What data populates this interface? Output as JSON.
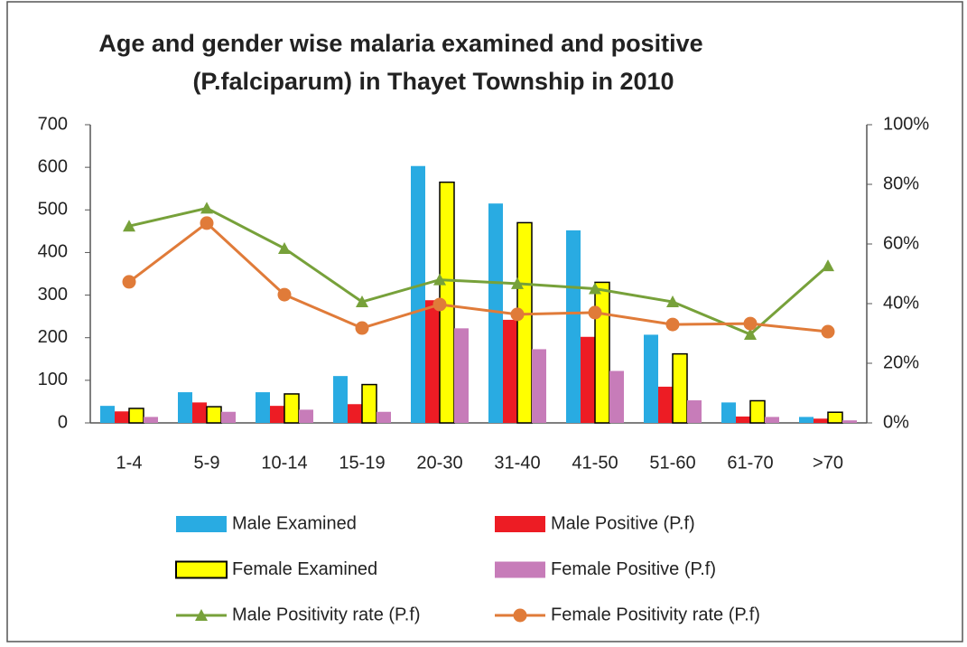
{
  "chart_data": {
    "type": "bar",
    "title": [
      "Age and gender wise malaria examined and positive",
      "(P.falciparum) in Thayet Township in 2010"
    ],
    "categories": [
      "1-4",
      "5-9",
      "10-14",
      "15-19",
      "20-30",
      "31-40",
      "41-50",
      "51-60",
      "61-70",
      ">70"
    ],
    "series": [
      {
        "name": "Male Examined",
        "type": "bar",
        "color": "#29abe2",
        "values": [
          40,
          72,
          72,
          110,
          603,
          515,
          452,
          207,
          48,
          14
        ]
      },
      {
        "name": "Male Positive (P.f)",
        "type": "bar",
        "color": "#ed1c24",
        "values": [
          27,
          48,
          40,
          44,
          288,
          242,
          202,
          85,
          15,
          10
        ]
      },
      {
        "name": "Female Examined",
        "type": "bar",
        "color": "#ffff00",
        "edgecolor": "#000000",
        "values": [
          34,
          38,
          68,
          90,
          565,
          470,
          330,
          162,
          52,
          25
        ]
      },
      {
        "name": "Female Positive (P.f)",
        "type": "bar",
        "color": "#c77cb9",
        "values": [
          14,
          26,
          31,
          26,
          222,
          173,
          122,
          53,
          14,
          6
        ]
      },
      {
        "name": "Male Positivity rate (P.f)",
        "type": "line",
        "marker": "triangle",
        "axis": "y2",
        "color": "#77a13a",
        "values": [
          66,
          72,
          58.5,
          40.6,
          48,
          46.7,
          45,
          40.6,
          29.7,
          52.7
        ]
      },
      {
        "name": "Female Positivity rate (P.f)",
        "type": "line",
        "marker": "circle",
        "axis": "y2",
        "color": "#e07b39",
        "values": [
          47.3,
          67,
          43,
          31.8,
          39.7,
          36.4,
          37,
          33,
          33.3,
          30.6
        ]
      }
    ],
    "ylim": [
      0,
      700
    ],
    "yticks": [
      0,
      100,
      200,
      300,
      400,
      500,
      600,
      700
    ],
    "y2lim": [
      0,
      100
    ],
    "y2ticks": [
      {
        "value": 0,
        "label": "0%"
      },
      {
        "value": 20,
        "label": "20%"
      },
      {
        "value": 40,
        "label": "40%"
      },
      {
        "value": 60,
        "label": "60%"
      },
      {
        "value": 80,
        "label": "80%"
      },
      {
        "value": 100,
        "label": "100%"
      }
    ],
    "grid": false
  }
}
